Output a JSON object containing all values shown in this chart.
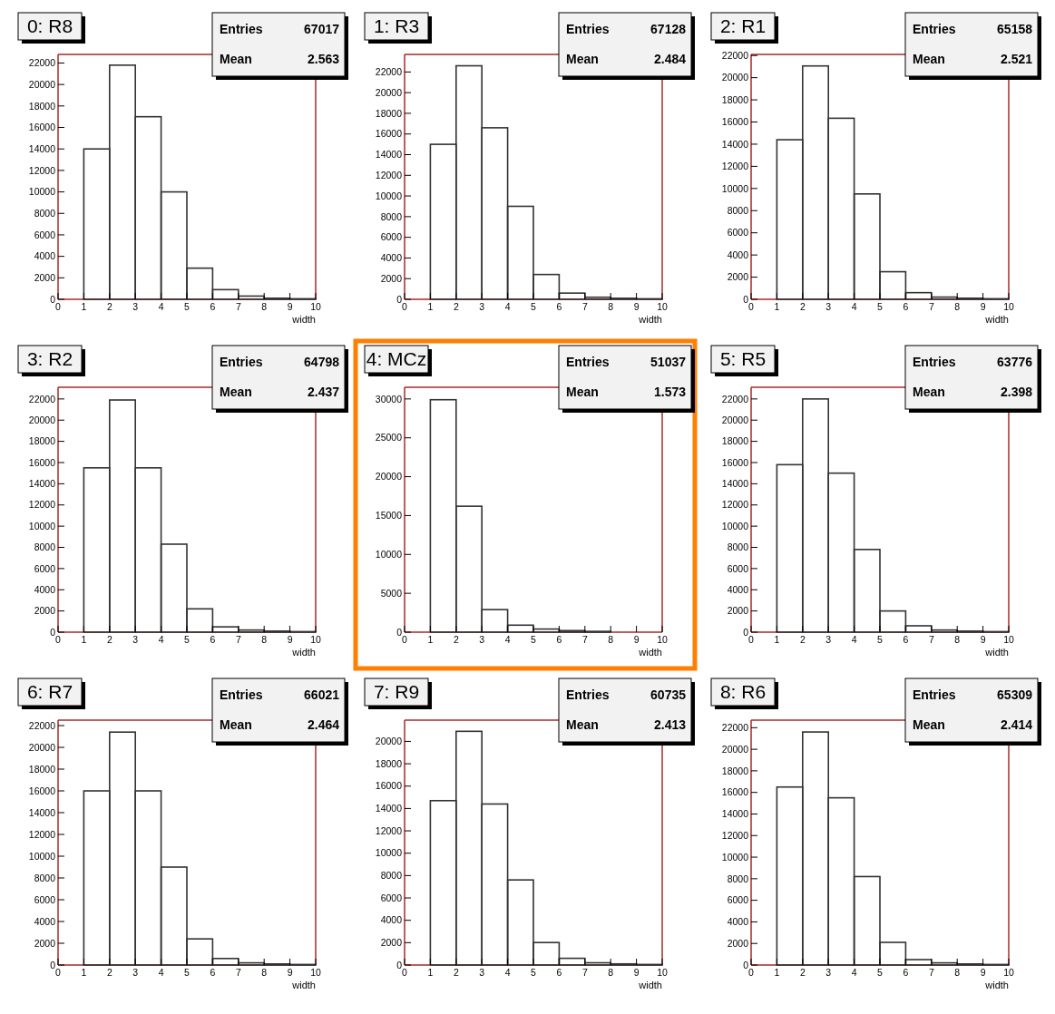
{
  "chart_data": [
    {
      "type": "histogram",
      "title": "0: R8",
      "xlabel": "width",
      "color": "#333333",
      "bins": [
        0,
        1,
        2,
        3,
        4,
        5,
        6,
        7,
        8,
        9,
        10
      ],
      "values": [
        0,
        14000,
        21800,
        17000,
        10000,
        2900,
        900,
        300,
        100,
        50
      ],
      "xlim": [
        0,
        10
      ],
      "ylim": [
        0,
        22800
      ],
      "xticks": [
        0,
        1,
        2,
        3,
        4,
        5,
        6,
        7,
        8,
        9,
        10
      ],
      "yticks": [
        0,
        2000,
        4000,
        6000,
        8000,
        10000,
        12000,
        14000,
        16000,
        18000,
        20000,
        22000
      ],
      "annotations": [
        "Entries 67017",
        "Mean 2.563"
      ]
    },
    {
      "type": "histogram",
      "title": "1: R3",
      "xlabel": "width",
      "color": "#333333",
      "bins": [
        0,
        1,
        2,
        3,
        4,
        5,
        6,
        7,
        8,
        9,
        10
      ],
      "values": [
        0,
        15000,
        22600,
        16600,
        9000,
        2400,
        600,
        200,
        100,
        50
      ],
      "xlim": [
        0,
        10
      ],
      "ylim": [
        0,
        23700
      ],
      "xticks": [
        0,
        1,
        2,
        3,
        4,
        5,
        6,
        7,
        8,
        9,
        10
      ],
      "yticks": [
        0,
        2000,
        4000,
        6000,
        8000,
        10000,
        12000,
        14000,
        16000,
        18000,
        20000,
        22000
      ],
      "annotations": [
        "Entries 67128",
        "Mean 2.484"
      ]
    },
    {
      "type": "histogram",
      "title": "2: R1",
      "xlabel": "width",
      "color": "#333333",
      "bins": [
        0,
        1,
        2,
        3,
        4,
        5,
        6,
        7,
        8,
        9,
        10
      ],
      "values": [
        0,
        14400,
        21060,
        16340,
        9510,
        2490,
        600,
        200,
        100,
        50
      ],
      "xlim": [
        0,
        10
      ],
      "ylim": [
        0,
        22100
      ],
      "xticks": [
        0,
        1,
        2,
        3,
        4,
        5,
        6,
        7,
        8,
        9,
        10
      ],
      "yticks": [
        0,
        2000,
        4000,
        6000,
        8000,
        10000,
        12000,
        14000,
        16000,
        18000,
        20000,
        22000
      ],
      "annotations": [
        "Entries 65158",
        "Mean 2.521"
      ]
    },
    {
      "type": "histogram",
      "title": "3: R2",
      "xlabel": "width",
      "color": "#333333",
      "bins": [
        0,
        1,
        2,
        3,
        4,
        5,
        6,
        7,
        8,
        9,
        10
      ],
      "values": [
        0,
        15500,
        21900,
        15500,
        8300,
        2200,
        500,
        200,
        100,
        50
      ],
      "xlim": [
        0,
        10
      ],
      "ylim": [
        0,
        23100
      ],
      "xticks": [
        0,
        1,
        2,
        3,
        4,
        5,
        6,
        7,
        8,
        9,
        10
      ],
      "yticks": [
        0,
        2000,
        4000,
        6000,
        8000,
        10000,
        12000,
        14000,
        16000,
        18000,
        20000,
        22000
      ],
      "annotations": [
        "Entries 64798",
        "Mean 2.437"
      ]
    },
    {
      "type": "histogram",
      "title": "4: MCz",
      "xlabel": "width",
      "color": "#333333",
      "bins": [
        0,
        1,
        2,
        3,
        4,
        5,
        6,
        7,
        8,
        9,
        10
      ],
      "values": [
        0,
        29900,
        16200,
        2900,
        900,
        400,
        200,
        100,
        0,
        0
      ],
      "xlim": [
        0,
        10
      ],
      "ylim": [
        0,
        31500
      ],
      "xticks": [
        0,
        1,
        2,
        3,
        4,
        5,
        6,
        7,
        8,
        9,
        10
      ],
      "yticks": [
        0,
        5000,
        10000,
        15000,
        20000,
        25000,
        30000
      ],
      "annotations": [
        "Entries 51037",
        "Mean 1.573"
      ]
    },
    {
      "type": "histogram",
      "title": "5: R5",
      "xlabel": "width",
      "color": "#333333",
      "bins": [
        0,
        1,
        2,
        3,
        4,
        5,
        6,
        7,
        8,
        9,
        10
      ],
      "values": [
        0,
        15800,
        22000,
        15000,
        7800,
        2000,
        600,
        200,
        100,
        50
      ],
      "xlim": [
        0,
        10
      ],
      "ylim": [
        0,
        23100
      ],
      "xticks": [
        0,
        1,
        2,
        3,
        4,
        5,
        6,
        7,
        8,
        9,
        10
      ],
      "yticks": [
        0,
        2000,
        4000,
        6000,
        8000,
        10000,
        12000,
        14000,
        16000,
        18000,
        20000,
        22000
      ],
      "annotations": [
        "Entries 63776",
        "Mean 2.398"
      ]
    },
    {
      "type": "histogram",
      "title": "6: R7",
      "xlabel": "width",
      "color": "#333333",
      "bins": [
        0,
        1,
        2,
        3,
        4,
        5,
        6,
        7,
        8,
        9,
        10
      ],
      "values": [
        0,
        16000,
        21400,
        16000,
        9000,
        2400,
        600,
        200,
        100,
        50
      ],
      "xlim": [
        0,
        10
      ],
      "ylim": [
        0,
        22500
      ],
      "xticks": [
        0,
        1,
        2,
        3,
        4,
        5,
        6,
        7,
        8,
        9,
        10
      ],
      "yticks": [
        0,
        2000,
        4000,
        6000,
        8000,
        10000,
        12000,
        14000,
        16000,
        18000,
        20000,
        22000
      ],
      "annotations": [
        "Entries 66021",
        "Mean 2.464"
      ]
    },
    {
      "type": "histogram",
      "title": "7: R9",
      "xlabel": "width",
      "color": "#333333",
      "bins": [
        0,
        1,
        2,
        3,
        4,
        5,
        6,
        7,
        8,
        9,
        10
      ],
      "values": [
        0,
        14700,
        20900,
        14400,
        7610,
        2010,
        600,
        200,
        100,
        50
      ],
      "xlim": [
        0,
        10
      ],
      "ylim": [
        0,
        21900
      ],
      "xticks": [
        0,
        1,
        2,
        3,
        4,
        5,
        6,
        7,
        8,
        9,
        10
      ],
      "yticks": [
        0,
        2000,
        4000,
        6000,
        8000,
        10000,
        12000,
        14000,
        16000,
        18000,
        20000
      ],
      "annotations": [
        "Entries 60735",
        "Mean 2.413"
      ]
    },
    {
      "type": "histogram",
      "title": "8: R6",
      "xlabel": "width",
      "color": "#333333",
      "bins": [
        0,
        1,
        2,
        3,
        4,
        5,
        6,
        7,
        8,
        9,
        10
      ],
      "values": [
        0,
        16500,
        21600,
        15500,
        8200,
        2100,
        500,
        200,
        100,
        50
      ],
      "xlim": [
        0,
        10
      ],
      "ylim": [
        0,
        22700
      ],
      "xticks": [
        0,
        1,
        2,
        3,
        4,
        5,
        6,
        7,
        8,
        9,
        10
      ],
      "yticks": [
        0,
        2000,
        4000,
        6000,
        8000,
        10000,
        12000,
        14000,
        16000,
        18000,
        20000,
        22000
      ],
      "annotations": [
        "Entries 65309",
        "Mean 2.414"
      ]
    }
  ]
}
